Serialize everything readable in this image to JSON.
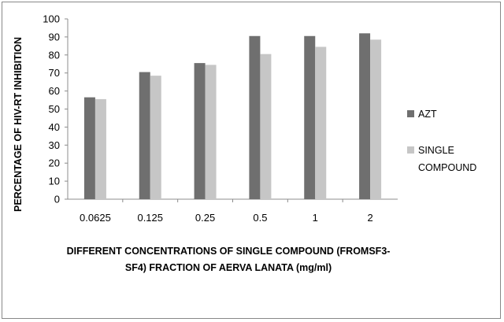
{
  "chart_data": {
    "type": "bar",
    "title": "",
    "categories": [
      "0.0625",
      "0.125",
      "0.25",
      "0.5",
      "1",
      "2"
    ],
    "series": [
      {
        "name": "AZT",
        "color": "#6f6f6f",
        "values": [
          56.5,
          70.5,
          75.5,
          90.5,
          90.5,
          92.0
        ]
      },
      {
        "name": "SINGLE COMPOUND",
        "color": "#c6c6c6",
        "values": [
          55.5,
          68.5,
          74.5,
          80.5,
          84.5,
          88.5
        ]
      }
    ],
    "ylim": [
      0,
      100
    ],
    "yticks": [
      0,
      10,
      20,
      30,
      40,
      50,
      60,
      70,
      80,
      90,
      100
    ],
    "ylabel": "PERCENTAGE OF HIV-RT INHIBITION",
    "xlabel_lines": [
      "DIFFERENT CONCENTRATIONS OF SINGLE COMPOUND (FROMSF3-",
      "SF4) FRACTION OF AERVA LANATA (mg/ml)"
    ],
    "legend_position": "right",
    "grid": false
  }
}
